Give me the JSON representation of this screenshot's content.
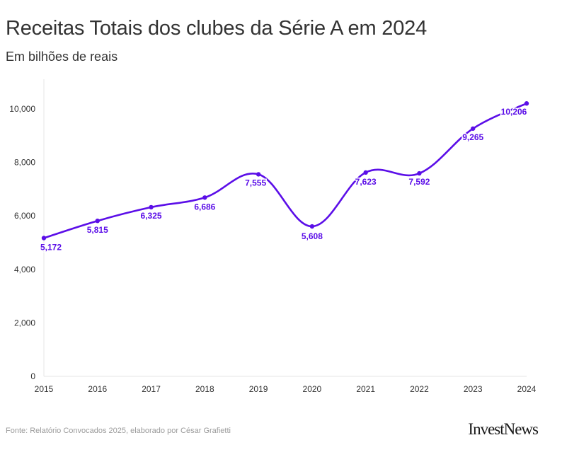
{
  "title": "Receitas Totais dos clubes da Série A em 2024",
  "subtitle": "Em bilhões de reais",
  "source": "Fonte: Relatório Convocados 2025, elaborado por César Grafietti",
  "logo": "InvestNews",
  "colors": {
    "line": "#5b0ee8",
    "label": "#5b0ee8",
    "axis": "#e6e6e6"
  },
  "chart_data": {
    "type": "line",
    "x": [
      "2015",
      "2016",
      "2017",
      "2018",
      "2019",
      "2020",
      "2021",
      "2022",
      "2023",
      "2024"
    ],
    "series": [
      {
        "values": [
          5172,
          5815,
          6325,
          6686,
          7555,
          5608,
          7623,
          7592,
          9265,
          10206
        ]
      }
    ],
    "data_labels": [
      "5,172",
      "5,815",
      "6,325",
      "6,686",
      "7,555",
      "5,608",
      "7,623",
      "7,592",
      "9,265",
      "10,206"
    ],
    "yticks": [
      0,
      2000,
      4000,
      6000,
      8000,
      10000
    ],
    "ytick_labels": [
      "0",
      "2,000",
      "4,000",
      "6,000",
      "8,000",
      "10,000"
    ],
    "ylim": [
      0,
      11000
    ],
    "grid": false,
    "smooth": true
  }
}
